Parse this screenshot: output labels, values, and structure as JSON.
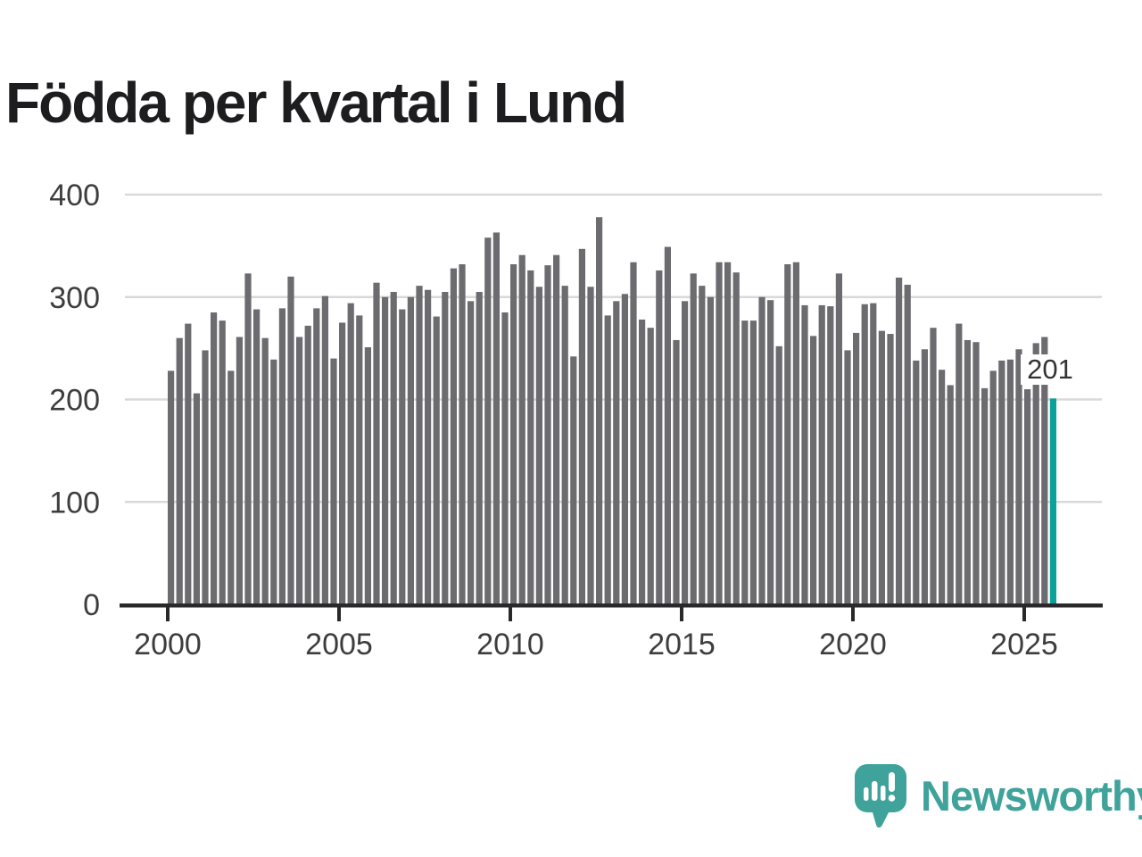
{
  "title": "Födda per kvartal i Lund",
  "colors": {
    "bar": "#6b6b70",
    "highlight": "#0aa29a",
    "logo_teal": "#3fa29b",
    "axis": "#29292c",
    "grid": "#d9d9d9",
    "tick_text": "#3d3d3d",
    "title_text": "#1d1d1f",
    "annotation_text": "#333333",
    "background": "#ffffff"
  },
  "logo": {
    "text": "Newsworthy",
    "icon": "speech-bubble-bar-chart-icon"
  },
  "chart_data": {
    "type": "bar",
    "title": "Födda per kvartal i Lund",
    "xlabel": "",
    "ylabel": "",
    "x_interval": "quarter",
    "x_start": "2000-Q1",
    "x_end": "2025-Q4",
    "x_tick_labels": [
      "2000",
      "2005",
      "2010",
      "2015",
      "2020",
      "2025"
    ],
    "y_tick_labels": [
      "0",
      "100",
      "200",
      "300",
      "400"
    ],
    "ylim": [
      0,
      400
    ],
    "grid": true,
    "legend": false,
    "highlight_last": true,
    "last_value_label": "201",
    "values": [
      228,
      260,
      274,
      206,
      248,
      285,
      277,
      228,
      261,
      323,
      288,
      260,
      239,
      289,
      320,
      261,
      272,
      289,
      301,
      240,
      275,
      294,
      282,
      251,
      314,
      300,
      305,
      288,
      300,
      311,
      307,
      281,
      305,
      328,
      332,
      296,
      305,
      358,
      363,
      285,
      332,
      341,
      326,
      310,
      331,
      341,
      311,
      242,
      347,
      310,
      378,
      282,
      296,
      303,
      334,
      278,
      270,
      326,
      349,
      258,
      296,
      323,
      311,
      300,
      334,
      334,
      324,
      277,
      277,
      300,
      297,
      252,
      332,
      334,
      292,
      262,
      292,
      291,
      323,
      248,
      265,
      293,
      294,
      267,
      264,
      319,
      312,
      238,
      249,
      270,
      229,
      214,
      274,
      258,
      256,
      211,
      228,
      238,
      239,
      249,
      210,
      255,
      261,
      201
    ]
  }
}
